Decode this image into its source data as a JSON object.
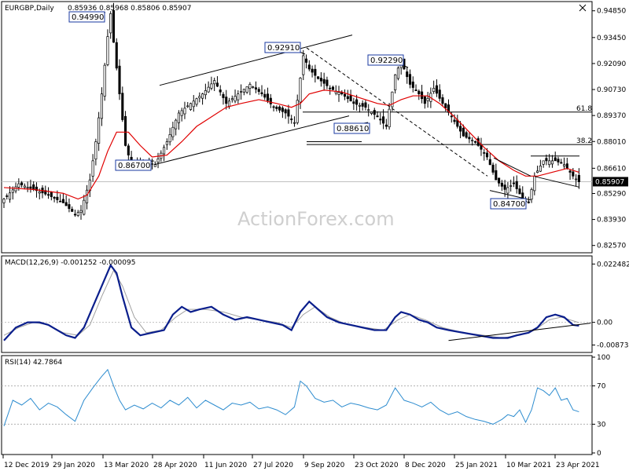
{
  "header": {
    "symbol_label": "EURGBP,Daily",
    "ohlc": "0.85936 0.85968 0.85806 0.85907"
  },
  "watermark": "ActionForex.com",
  "colors": {
    "candle": "#000000",
    "ma": "#e00000",
    "macd": "#0a1e8c",
    "macd_signal": "#a0a0a0",
    "rsi": "#2d8ccf",
    "trendline": "#000000",
    "level_line": "#000000",
    "current_price_line": "#c0c0c0"
  },
  "chart_data": [
    {
      "type": "candlestick",
      "title": "EURGBP,Daily",
      "price_axis_ticks": [
        "0.94850",
        "0.93450",
        "0.92090",
        "0.90730",
        "0.89370",
        "0.88010",
        "0.86610",
        "0.85290",
        "0.83930",
        "0.82570"
      ],
      "current_price_label": "0.85907",
      "date_axis_ticks": [
        "12 Dec 2019",
        "29 Jan 2020",
        "13 Mar 2020",
        "28 Apr 2020",
        "11 Jun 2020",
        "27 Jul 2020",
        "9 Sep 2020",
        "23 Oct 2020",
        "8 Dec 2020",
        "25 Jan 2021",
        "10 Mar 2021",
        "23 Apr 2021"
      ],
      "ylim": [
        0.8227,
        0.9525
      ],
      "annotations": [
        "0.94990",
        "0.92910",
        "0.92290",
        "0.88610",
        "0.86700",
        "0.84700"
      ],
      "fib_levels": [
        {
          "label": "61.8",
          "value": 0.8955
        },
        {
          "label": "38.2",
          "value": 0.8785
        }
      ],
      "close_path": [
        [
          0,
          0.85
        ],
        [
          5,
          0.858
        ],
        [
          10,
          0.855
        ],
        [
          15,
          0.852
        ],
        [
          20,
          0.848
        ],
        [
          24,
          0.842
        ],
        [
          26,
          0.844
        ],
        [
          29,
          0.86
        ],
        [
          31,
          0.88
        ],
        [
          33,
          0.905
        ],
        [
          35,
          0.935
        ],
        [
          36,
          0.947
        ],
        [
          37,
          0.932
        ],
        [
          39,
          0.905
        ],
        [
          41,
          0.878
        ],
        [
          43,
          0.868
        ],
        [
          47,
          0.87
        ],
        [
          51,
          0.868
        ],
        [
          55,
          0.88
        ],
        [
          59,
          0.895
        ],
        [
          63,
          0.9
        ],
        [
          67,
          0.905
        ],
        [
          71,
          0.912
        ],
        [
          75,
          0.9
        ],
        [
          79,
          0.905
        ],
        [
          83,
          0.91
        ],
        [
          87,
          0.905
        ],
        [
          91,
          0.898
        ],
        [
          95,
          0.895
        ],
        [
          98,
          0.89
        ],
        [
          101,
          0.925
        ],
        [
          103,
          0.918
        ],
        [
          106,
          0.913
        ],
        [
          110,
          0.908
        ],
        [
          114,
          0.905
        ],
        [
          118,
          0.9
        ],
        [
          122,
          0.898
        ],
        [
          126,
          0.893
        ],
        [
          129,
          0.888
        ],
        [
          132,
          0.915
        ],
        [
          134,
          0.922
        ],
        [
          137,
          0.91
        ],
        [
          140,
          0.905
        ],
        [
          142,
          0.9
        ],
        [
          145,
          0.908
        ],
        [
          148,
          0.9
        ],
        [
          151,
          0.893
        ],
        [
          155,
          0.883
        ],
        [
          159,
          0.88
        ],
        [
          163,
          0.872
        ],
        [
          166,
          0.86
        ],
        [
          169,
          0.855
        ],
        [
          172,
          0.858
        ],
        [
          175,
          0.85
        ],
        [
          177,
          0.848
        ],
        [
          179,
          0.862
        ],
        [
          182,
          0.87
        ],
        [
          186,
          0.87
        ],
        [
          189,
          0.868
        ],
        [
          192,
          0.862
        ],
        [
          194,
          0.859
        ]
      ],
      "ma_path": [
        [
          0,
          0.856
        ],
        [
          10,
          0.855
        ],
        [
          20,
          0.853
        ],
        [
          25,
          0.85
        ],
        [
          28,
          0.852
        ],
        [
          32,
          0.862
        ],
        [
          35,
          0.875
        ],
        [
          38,
          0.885
        ],
        [
          42,
          0.885
        ],
        [
          46,
          0.878
        ],
        [
          50,
          0.872
        ],
        [
          55,
          0.873
        ],
        [
          60,
          0.88
        ],
        [
          65,
          0.888
        ],
        [
          70,
          0.893
        ],
        [
          75,
          0.898
        ],
        [
          80,
          0.9
        ],
        [
          86,
          0.902
        ],
        [
          92,
          0.9
        ],
        [
          97,
          0.898
        ],
        [
          100,
          0.9
        ],
        [
          103,
          0.905
        ],
        [
          108,
          0.907
        ],
        [
          114,
          0.906
        ],
        [
          120,
          0.903
        ],
        [
          126,
          0.9
        ],
        [
          130,
          0.899
        ],
        [
          134,
          0.902
        ],
        [
          138,
          0.904
        ],
        [
          143,
          0.904
        ],
        [
          147,
          0.9
        ],
        [
          152,
          0.893
        ],
        [
          157,
          0.885
        ],
        [
          162,
          0.877
        ],
        [
          167,
          0.87
        ],
        [
          172,
          0.865
        ],
        [
          176,
          0.862
        ],
        [
          180,
          0.862
        ],
        [
          185,
          0.864
        ],
        [
          190,
          0.866
        ],
        [
          194,
          0.864
        ]
      ]
    },
    {
      "type": "line",
      "title": "MACD(12,26,9) -0.001252 -0.000095",
      "axis_ticks": [
        "0.022482",
        "0.00",
        "-0.008736"
      ],
      "ylim": [
        -0.011,
        0.025
      ],
      "macd_path": [
        [
          0,
          -0.007
        ],
        [
          4,
          -0.002
        ],
        [
          8,
          0.0
        ],
        [
          12,
          0.0
        ],
        [
          15,
          -0.001
        ],
        [
          18,
          -0.003
        ],
        [
          21,
          -0.005
        ],
        [
          24,
          -0.006
        ],
        [
          27,
          -0.002
        ],
        [
          30,
          0.006
        ],
        [
          33,
          0.014
        ],
        [
          36,
          0.022
        ],
        [
          38,
          0.019
        ],
        [
          40,
          0.01
        ],
        [
          43,
          -0.002
        ],
        [
          46,
          -0.005
        ],
        [
          50,
          -0.004
        ],
        [
          54,
          -0.003
        ],
        [
          57,
          0.003
        ],
        [
          60,
          0.006
        ],
        [
          63,
          0.004
        ],
        [
          66,
          0.005
        ],
        [
          70,
          0.006
        ],
        [
          74,
          0.003
        ],
        [
          78,
          0.001
        ],
        [
          82,
          0.002
        ],
        [
          86,
          0.001
        ],
        [
          90,
          0.0
        ],
        [
          94,
          -0.001
        ],
        [
          97,
          -0.003
        ],
        [
          100,
          0.004
        ],
        [
          103,
          0.008
        ],
        [
          106,
          0.005
        ],
        [
          109,
          0.002
        ],
        [
          113,
          0.0
        ],
        [
          117,
          -0.001
        ],
        [
          121,
          -0.002
        ],
        [
          125,
          -0.003
        ],
        [
          129,
          -0.003
        ],
        [
          132,
          0.002
        ],
        [
          134,
          0.004
        ],
        [
          137,
          0.003
        ],
        [
          140,
          0.001
        ],
        [
          143,
          0.0
        ],
        [
          146,
          -0.002
        ],
        [
          150,
          -0.003
        ],
        [
          155,
          -0.004
        ],
        [
          160,
          -0.005
        ],
        [
          165,
          -0.006
        ],
        [
          170,
          -0.006
        ],
        [
          173,
          -0.005
        ],
        [
          177,
          -0.004
        ],
        [
          180,
          -0.002
        ],
        [
          183,
          0.002
        ],
        [
          186,
          0.003
        ],
        [
          189,
          0.002
        ],
        [
          192,
          -0.001
        ],
        [
          194,
          -0.0013
        ]
      ],
      "signal_path": [
        [
          0,
          -0.005
        ],
        [
          5,
          -0.002
        ],
        [
          10,
          0.0
        ],
        [
          15,
          -0.001
        ],
        [
          20,
          -0.004
        ],
        [
          25,
          -0.005
        ],
        [
          29,
          -0.001
        ],
        [
          33,
          0.01
        ],
        [
          37,
          0.02
        ],
        [
          40,
          0.014
        ],
        [
          44,
          0.002
        ],
        [
          48,
          -0.004
        ],
        [
          53,
          -0.003
        ],
        [
          58,
          0.002
        ],
        [
          62,
          0.005
        ],
        [
          68,
          0.005
        ],
        [
          74,
          0.004
        ],
        [
          80,
          0.002
        ],
        [
          86,
          0.001
        ],
        [
          92,
          0.0
        ],
        [
          97,
          -0.002
        ],
        [
          101,
          0.003
        ],
        [
          105,
          0.006
        ],
        [
          110,
          0.002
        ],
        [
          116,
          -0.001
        ],
        [
          122,
          -0.002
        ],
        [
          128,
          -0.003
        ],
        [
          133,
          0.001
        ],
        [
          137,
          0.003
        ],
        [
          142,
          0.001
        ],
        [
          148,
          -0.002
        ],
        [
          155,
          -0.004
        ],
        [
          162,
          -0.005
        ],
        [
          168,
          -0.006
        ],
        [
          174,
          -0.005
        ],
        [
          179,
          -0.003
        ],
        [
          184,
          0.001
        ],
        [
          188,
          0.002
        ],
        [
          194,
          -0.0001
        ]
      ],
      "trendline": [
        [
          150,
          -0.007
        ],
        [
          194,
          -0.0012
        ]
      ]
    },
    {
      "type": "line",
      "title": "RSI(14) 42.7864",
      "axis_ticks": [
        "100",
        "70",
        "30",
        "0"
      ],
      "ylim": [
        0,
        100
      ],
      "levels": [
        70,
        30
      ],
      "rsi_path": [
        [
          0,
          28
        ],
        [
          3,
          55
        ],
        [
          6,
          50
        ],
        [
          9,
          57
        ],
        [
          12,
          45
        ],
        [
          15,
          52
        ],
        [
          18,
          48
        ],
        [
          21,
          40
        ],
        [
          24,
          33
        ],
        [
          27,
          55
        ],
        [
          30,
          68
        ],
        [
          33,
          80
        ],
        [
          35,
          87
        ],
        [
          37,
          70
        ],
        [
          39,
          55
        ],
        [
          41,
          45
        ],
        [
          44,
          50
        ],
        [
          47,
          46
        ],
        [
          50,
          52
        ],
        [
          53,
          47
        ],
        [
          56,
          55
        ],
        [
          59,
          50
        ],
        [
          62,
          58
        ],
        [
          65,
          47
        ],
        [
          68,
          55
        ],
        [
          71,
          50
        ],
        [
          74,
          45
        ],
        [
          77,
          52
        ],
        [
          80,
          50
        ],
        [
          83,
          53
        ],
        [
          86,
          46
        ],
        [
          89,
          48
        ],
        [
          92,
          45
        ],
        [
          95,
          40
        ],
        [
          98,
          48
        ],
        [
          100,
          75
        ],
        [
          102,
          70
        ],
        [
          105,
          57
        ],
        [
          108,
          53
        ],
        [
          111,
          55
        ],
        [
          114,
          48
        ],
        [
          117,
          52
        ],
        [
          120,
          50
        ],
        [
          123,
          47
        ],
        [
          126,
          45
        ],
        [
          129,
          50
        ],
        [
          132,
          68
        ],
        [
          135,
          55
        ],
        [
          138,
          52
        ],
        [
          141,
          48
        ],
        [
          144,
          53
        ],
        [
          147,
          45
        ],
        [
          150,
          40
        ],
        [
          153,
          43
        ],
        [
          156,
          38
        ],
        [
          159,
          35
        ],
        [
          162,
          33
        ],
        [
          165,
          30
        ],
        [
          168,
          35
        ],
        [
          170,
          40
        ],
        [
          172,
          38
        ],
        [
          174,
          45
        ],
        [
          176,
          32
        ],
        [
          178,
          45
        ],
        [
          180,
          68
        ],
        [
          182,
          65
        ],
        [
          184,
          60
        ],
        [
          186,
          68
        ],
        [
          188,
          55
        ],
        [
          190,
          57
        ],
        [
          192,
          45
        ],
        [
          194,
          43
        ]
      ]
    }
  ]
}
